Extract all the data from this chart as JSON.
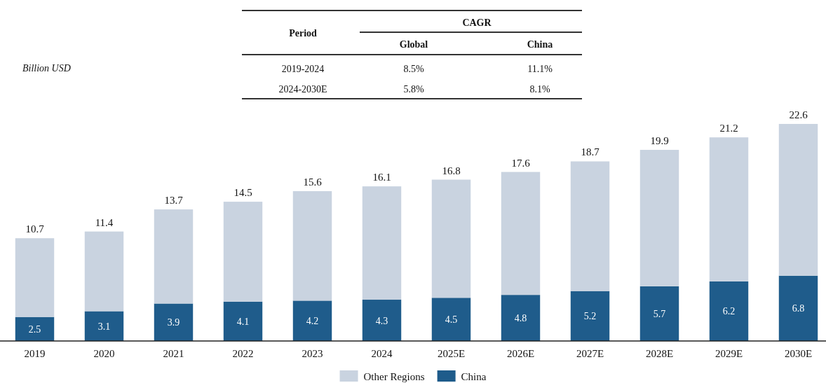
{
  "chart_data": [
    {
      "type": "other",
      "annotations": [
        "Period",
        "CAGR",
        "Global",
        "China",
        "2019-2024",
        "8.5%",
        "11.1%",
        "2024-2030E",
        "5.8%",
        "8.1%"
      ]
    },
    {
      "type": "bar",
      "stacked": true,
      "ylabel": "Billion USD",
      "legend": "bottom",
      "categories": [
        "2019",
        "2020",
        "2021",
        "2022",
        "2023",
        "2024",
        "2025E",
        "2026E",
        "2027E",
        "2028E",
        "2029E",
        "2030E"
      ],
      "series": [
        {
          "name": "China",
          "color": "#1f5c8b",
          "values": [
            2.5,
            3.1,
            3.9,
            4.1,
            4.2,
            4.3,
            4.5,
            4.8,
            5.2,
            5.7,
            6.2,
            6.8
          ],
          "value_labels": [
            "2.5",
            "3.1",
            "3.9",
            "4.1",
            "4.2",
            "4.3",
            "4.5",
            "4.8",
            "5.2",
            "5.7",
            "6.2",
            "6.8"
          ]
        },
        {
          "name": "Other Regions",
          "color": "#c9d3e0",
          "values": [
            8.2,
            8.3,
            9.8,
            10.4,
            11.4,
            11.8,
            12.3,
            12.8,
            13.5,
            14.2,
            15.0,
            15.8
          ]
        }
      ],
      "totals": [
        "10.7",
        "11.4",
        "13.7",
        "14.5",
        "15.6",
        "16.1",
        "16.8",
        "17.6",
        "18.7",
        "19.9",
        "21.2",
        "22.6"
      ]
    }
  ]
}
